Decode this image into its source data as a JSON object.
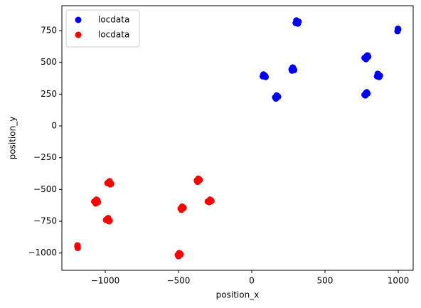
{
  "chart_data": {
    "type": "scatter",
    "xlabel": "position_x",
    "ylabel": "position_y",
    "xlim": [
      -1296,
      1102
    ],
    "ylim": [
      -1136,
      946
    ],
    "xticks": [
      {
        "value": -1000,
        "label": "−1000"
      },
      {
        "value": -500,
        "label": "−500"
      },
      0,
      500,
      1000
    ],
    "yticks": [
      {
        "value": -1000,
        "label": "−1000"
      },
      {
        "value": -750,
        "label": "−750"
      },
      {
        "value": -500,
        "label": "−500"
      },
      {
        "value": -250,
        "label": "−250"
      },
      0,
      250,
      500,
      750
    ],
    "legend": "upper left",
    "series": [
      {
        "name": "locdata",
        "color": "#0000ff",
        "x": [
          300,
          310,
          320,
          305,
          315,
          75,
          85,
          95,
          80,
          90,
          160,
          170,
          180,
          165,
          175,
          275,
          285,
          280,
          290,
          272,
          770,
          785,
          795,
          780,
          790,
          855,
          865,
          875,
          860,
          870,
          770,
          780,
          790,
          785,
          775,
          995,
          1000,
          998
        ],
        "y": [
          810,
          825,
          820,
          830,
          805,
          390,
          400,
          385,
          405,
          395,
          225,
          240,
          230,
          215,
          235,
          435,
          450,
          460,
          440,
          445,
          535,
          550,
          545,
          525,
          555,
          390,
          405,
          395,
          410,
          385,
          245,
          260,
          255,
          265,
          240,
          745,
          760,
          765
        ]
      },
      {
        "name": "locdata",
        "color": "#ff0000",
        "x": [
          -1075,
          -1060,
          -1050,
          -1065,
          -1055,
          -985,
          -970,
          -960,
          -975,
          -965,
          -995,
          -980,
          -970,
          -985,
          -975,
          -1190,
          -1190,
          -1188,
          -375,
          -365,
          -355,
          -370,
          -360,
          -485,
          -475,
          -465,
          -480,
          -470,
          -300,
          -285,
          -275,
          -290,
          -280,
          -505,
          -495,
          -485,
          -500,
          -490
        ],
        "y": [
          -595,
          -580,
          -600,
          -610,
          -585,
          -450,
          -435,
          -455,
          -440,
          -460,
          -740,
          -725,
          -745,
          -730,
          -750,
          -940,
          -950,
          -960,
          -430,
          -415,
          -425,
          -440,
          -420,
          -650,
          -635,
          -645,
          -660,
          -640,
          -595,
          -580,
          -590,
          -600,
          -585,
          -1015,
          -1000,
          -1010,
          -1025,
          -1005
        ]
      }
    ]
  }
}
